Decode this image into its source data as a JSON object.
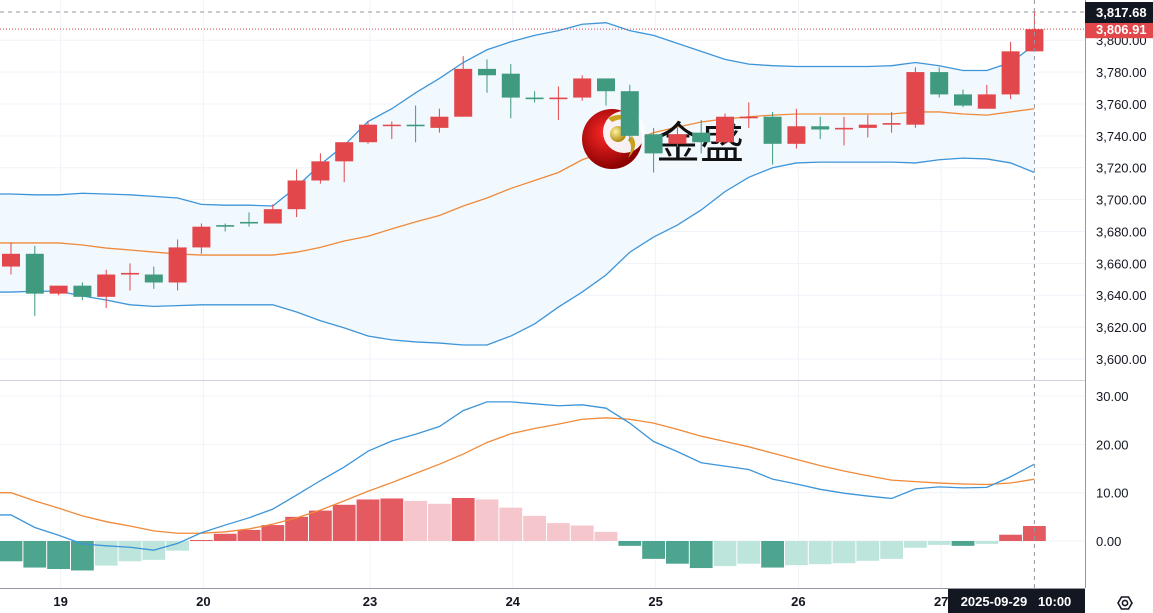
{
  "colors": {
    "up": "#e2474b",
    "down": "#3f9a80",
    "hist_up_strong": "#e35a60",
    "hist_up_weak": "#f5c6cb",
    "hist_down_strong": "#4ea58f",
    "hist_down_weak": "#bde5dc",
    "band": "#3d95d9",
    "band_fill": "#f1f8fe",
    "middle": "#f08a3a",
    "macd": "#3d95d9",
    "signal": "#f08a3a",
    "last_price_tag": "#e2474b",
    "crosshair_tag": "#131722"
  },
  "watermark": {
    "text": "金盛"
  },
  "crosshair": {
    "price_label": "3,817.68",
    "price": 3817.68,
    "time_label": "2025-09-29   10:00",
    "candle_index": 43
  },
  "last_price": {
    "label": "3,806.91",
    "value": 3806.91
  },
  "chart_data": [
    {
      "type": "candlestick",
      "title": "",
      "ylim": [
        3590,
        3825
      ],
      "y_ticks": [
        {
          "value": 3600,
          "label": "3,600.00"
        },
        {
          "value": 3620,
          "label": "3,620.00"
        },
        {
          "value": 3640,
          "label": "3,640.00"
        },
        {
          "value": 3660,
          "label": "3,660.00"
        },
        {
          "value": 3680,
          "label": "3,680.00"
        },
        {
          "value": 3700,
          "label": "3,700.00"
        },
        {
          "value": 3720,
          "label": "3,720.00"
        },
        {
          "value": 3740,
          "label": "3,740.00"
        },
        {
          "value": 3760,
          "label": "3,760.00"
        },
        {
          "value": 3780,
          "label": "3,780.00"
        },
        {
          "value": 3800,
          "label": "3,800.00"
        }
      ],
      "x_ticks": [
        {
          "index": 2,
          "label": "19"
        },
        {
          "index": 8,
          "label": "20"
        },
        {
          "index": 15,
          "label": "23"
        },
        {
          "index": 21,
          "label": "24"
        },
        {
          "index": 27,
          "label": "25"
        },
        {
          "index": 33,
          "label": "26"
        },
        {
          "index": 39,
          "label": "27"
        }
      ],
      "candles_ohlc": [
        [
          3658,
          3673,
          3653,
          3666
        ],
        [
          3666,
          3671,
          3627,
          3641
        ],
        [
          3641,
          3646,
          3640,
          3646
        ],
        [
          3646,
          3648,
          3637,
          3639
        ],
        [
          3639,
          3656,
          3632,
          3653
        ],
        [
          3653,
          3660,
          3643,
          3654
        ],
        [
          3653,
          3658,
          3644,
          3648
        ],
        [
          3648,
          3675,
          3643,
          3670
        ],
        [
          3670,
          3685,
          3666,
          3683
        ],
        [
          3684,
          3685,
          3680,
          3683
        ],
        [
          3686,
          3692,
          3683,
          3685
        ],
        [
          3685,
          3697,
          3685,
          3694
        ],
        [
          3694,
          3719,
          3689,
          3712
        ],
        [
          3712,
          3729,
          3710,
          3724
        ],
        [
          3724,
          3736,
          3711,
          3736
        ],
        [
          3736,
          3749,
          3735,
          3747
        ],
        [
          3747,
          3749,
          3738,
          3747
        ],
        [
          3747,
          3759,
          3736,
          3746
        ],
        [
          3745,
          3757,
          3742,
          3752
        ],
        [
          3752,
          3790,
          3752,
          3782
        ],
        [
          3782,
          3788,
          3767,
          3778
        ],
        [
          3779,
          3785,
          3751,
          3764
        ],
        [
          3764,
          3768,
          3761,
          3763
        ],
        [
          3763,
          3771,
          3750,
          3764
        ],
        [
          3764,
          3778,
          3762,
          3776
        ],
        [
          3776,
          3776,
          3759,
          3768
        ],
        [
          3768,
          3772,
          3737,
          3740
        ],
        [
          3741,
          3745,
          3717,
          3729
        ],
        [
          3735,
          3745,
          3733,
          3741
        ],
        [
          3742,
          3750,
          3729,
          3736
        ],
        [
          3736,
          3754,
          3735,
          3752
        ],
        [
          3751,
          3761,
          3745,
          3752
        ],
        [
          3752,
          3755,
          3722,
          3735
        ],
        [
          3735,
          3757,
          3732,
          3746
        ],
        [
          3746,
          3752,
          3738,
          3744
        ],
        [
          3744,
          3752,
          3734,
          3745
        ],
        [
          3745,
          3753,
          3739,
          3747
        ],
        [
          3747,
          3755,
          3742,
          3748
        ],
        [
          3747,
          3783,
          3745,
          3780
        ],
        [
          3780,
          3783,
          3764,
          3766
        ],
        [
          3766,
          3769,
          3758,
          3759
        ],
        [
          3757,
          3772,
          3757,
          3766
        ],
        [
          3766,
          3799,
          3763,
          3793
        ],
        [
          3793,
          3817.68,
          3793,
          3806.91
        ]
      ],
      "bollinger": {
        "upper": [
          3703.5,
          3703,
          3703,
          3704,
          3703.5,
          3703,
          3702,
          3701,
          3697,
          3696.5,
          3696.5,
          3696,
          3708,
          3722,
          3734,
          3749,
          3757,
          3767,
          3776,
          3786,
          3794,
          3799,
          3803,
          3806,
          3810,
          3811,
          3806,
          3803,
          3798,
          3793,
          3788,
          3785,
          3784,
          3783.5,
          3783.5,
          3783.5,
          3783.5,
          3784,
          3786,
          3784,
          3781,
          3781,
          3786,
          3797
        ],
        "middle": [
          3672.8,
          3672.8,
          3672.8,
          3671.5,
          3669.6,
          3668.4,
          3667.1,
          3665.9,
          3665.2,
          3665.2,
          3665.2,
          3665.2,
          3667,
          3670,
          3674,
          3677,
          3681.6,
          3686,
          3690,
          3696,
          3701,
          3707,
          3712,
          3717,
          3725,
          3730,
          3736,
          3742,
          3745.5,
          3748.7,
          3750.6,
          3752,
          3753,
          3753.7,
          3753.7,
          3753.7,
          3753.7,
          3753.7,
          3755,
          3755,
          3753.7,
          3753,
          3755,
          3757
        ],
        "lower": [
          3642,
          3642.5,
          3642.5,
          3639.5,
          3637,
          3634,
          3633,
          3633.5,
          3634,
          3634,
          3634,
          3634,
          3629.5,
          3624,
          3619.5,
          3614.4,
          3612,
          3610.7,
          3610,
          3608.8,
          3608.8,
          3614.4,
          3622,
          3632.6,
          3642,
          3652.7,
          3667,
          3676.5,
          3684,
          3693.5,
          3705,
          3714,
          3720,
          3723,
          3723.5,
          3723.5,
          3723.5,
          3723.5,
          3723,
          3725,
          3726,
          3725.5,
          3723,
          3717
        ]
      }
    },
    {
      "type": "macd",
      "ylim": [
        -10,
        33
      ],
      "y_ticks": [
        {
          "value": 0,
          "label": "0.00"
        },
        {
          "value": 10,
          "label": "10.00"
        },
        {
          "value": 20,
          "label": "20.00"
        },
        {
          "value": 30,
          "label": "30.00"
        }
      ],
      "histogram": [
        -4.2,
        -5.5,
        -5.8,
        -6.1,
        -5.1,
        -4.2,
        -3.9,
        -2.0,
        0.2,
        1.5,
        2.3,
        3.3,
        5.0,
        6.3,
        7.5,
        8.6,
        8.8,
        8.3,
        7.7,
        8.9,
        8.6,
        6.9,
        5.2,
        3.7,
        3.2,
        1.9,
        -1.0,
        -3.7,
        -4.7,
        -5.6,
        -5.2,
        -4.7,
        -5.5,
        -5.0,
        -4.8,
        -4.6,
        -4.1,
        -3.7,
        -1.4,
        -0.8,
        -1.0,
        -0.6,
        1.3,
        3.1
      ],
      "macd": [
        5.4,
        2.8,
        1.2,
        -0.6,
        -1.0,
        -1.3,
        -1.9,
        -0.5,
        1.7,
        3.3,
        4.8,
        6.6,
        9.5,
        12.5,
        15.3,
        18.6,
        20.7,
        22.1,
        23.7,
        27.0,
        28.8,
        28.8,
        28.4,
        28.0,
        28.2,
        27.5,
        24.4,
        20.6,
        18.5,
        16.2,
        15.5,
        14.8,
        12.8,
        11.8,
        10.7,
        9.9,
        9.3,
        8.8,
        10.8,
        11.2,
        11.0,
        11.1,
        13.3,
        15.9
      ],
      "signal": [
        10.0,
        8.3,
        6.8,
        5.2,
        4.0,
        3.1,
        2.1,
        1.6,
        1.6,
        1.9,
        2.5,
        3.5,
        4.8,
        6.4,
        8.3,
        10.3,
        12.1,
        14.0,
        15.9,
        18.0,
        20.4,
        22.2,
        23.3,
        24.2,
        25.2,
        25.5,
        25.2,
        24.4,
        23.1,
        21.7,
        20.6,
        19.5,
        18.2,
        16.9,
        15.6,
        14.5,
        13.5,
        12.6,
        12.3,
        12.0,
        11.8,
        11.7,
        12.0,
        12.8
      ]
    }
  ]
}
